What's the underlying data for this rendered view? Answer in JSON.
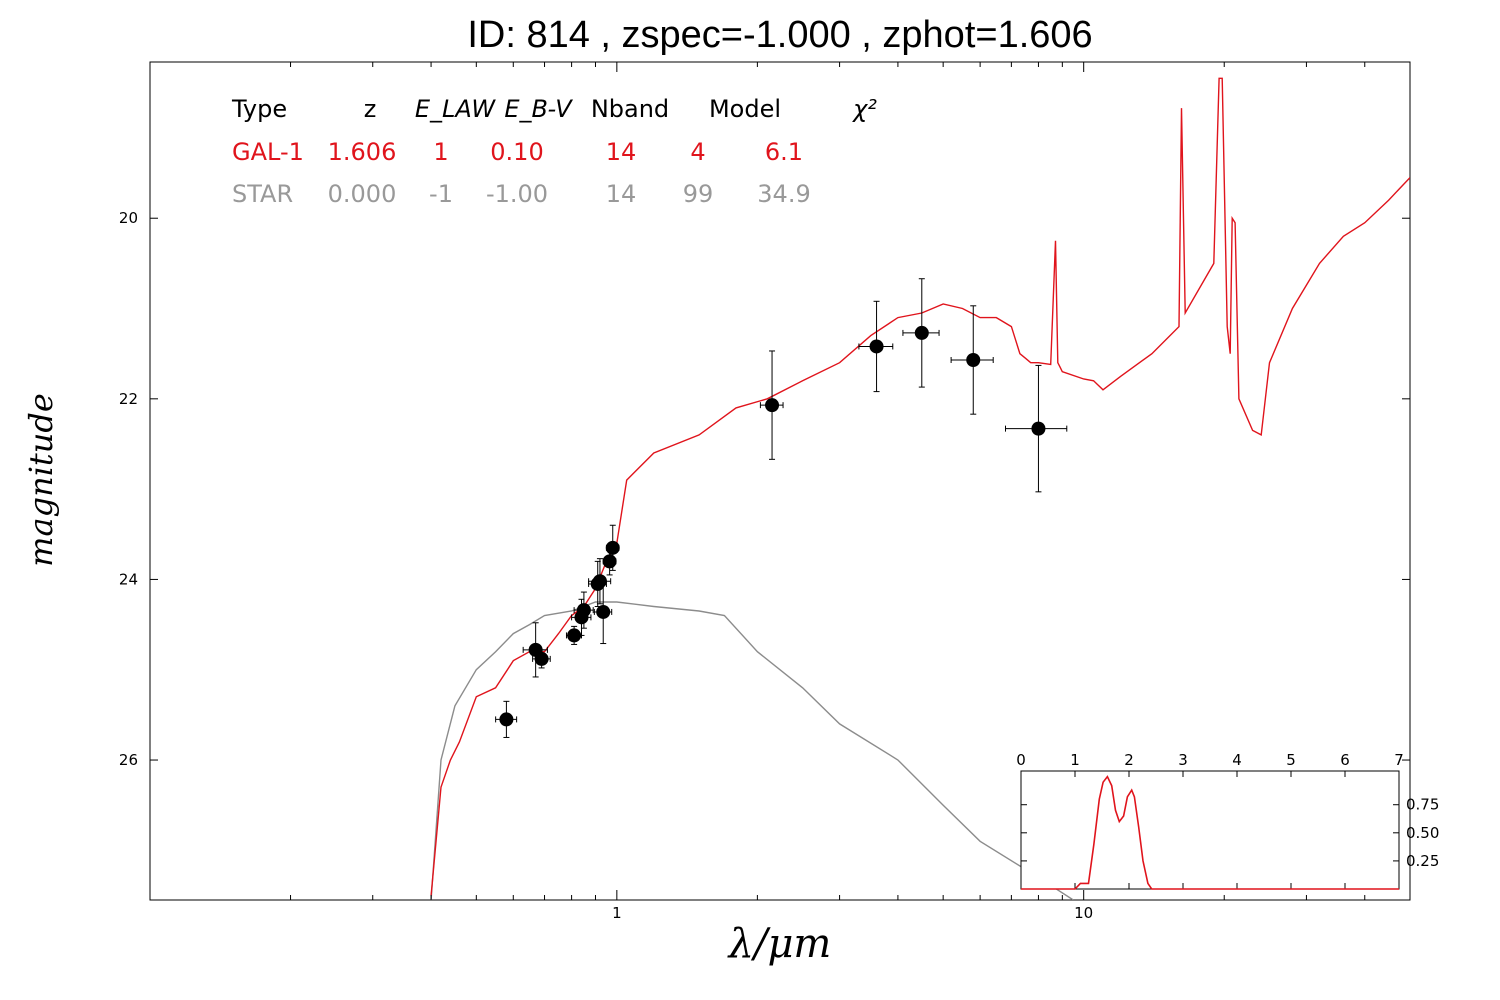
{
  "title": "ID:  814   , zspec=-1.000 , zphot=1.606",
  "colors": {
    "galaxy": "#e0141c",
    "star": "#8c8c8c",
    "points": "#000000"
  },
  "fit_table": {
    "headers": [
      "Type",
      "z",
      "E_LAW",
      "E_B-V",
      "Nband",
      "Model",
      "χ²"
    ],
    "rows": [
      {
        "name": "galaxy",
        "color": "#e0141c",
        "cells": [
          "GAL-1",
          "1.606",
          "1",
          "0.10",
          "14",
          "4",
          "6.1"
        ]
      },
      {
        "name": "star",
        "color": "#999999",
        "cells": [
          "STAR",
          "0.000",
          "-1",
          "-1.00",
          "14",
          "99",
          "34.9"
        ]
      }
    ]
  },
  "chart_data": [
    {
      "type": "line",
      "xlabel": "λ/μm",
      "ylabel": "magnitude",
      "x_scale": "log",
      "xlim": [
        0.1,
        50
      ],
      "ylim": [
        27.55,
        18.27
      ],
      "y_inverted": true,
      "x_ticks": [
        1,
        10
      ],
      "y_ticks": [
        20,
        22,
        24,
        26
      ],
      "series": [
        {
          "name": "GAL-1",
          "color": "#e0141c",
          "x": [
            0.4,
            0.42,
            0.44,
            0.46,
            0.5,
            0.55,
            0.6,
            0.65,
            0.7,
            0.75,
            0.8,
            0.85,
            0.9,
            0.95,
            1.0,
            1.05,
            1.2,
            1.5,
            1.8,
            2.1,
            2.5,
            3.0,
            3.5,
            4.0,
            4.5,
            5.0,
            5.5,
            6.0,
            6.5,
            7.0,
            7.3,
            7.5,
            7.7,
            8.0,
            8.5,
            8.7,
            8.8,
            8.9,
            9.0,
            10,
            10.5,
            11,
            12,
            14,
            16,
            16.2,
            16.5,
            19,
            19.5,
            19.8,
            20.3,
            20.6,
            20.8,
            21.1,
            21.5,
            23,
            24,
            25,
            28,
            32,
            36,
            40,
            45,
            50
          ],
          "y": [
            27.5,
            26.3,
            26.0,
            25.8,
            25.3,
            25.2,
            24.9,
            24.8,
            24.8,
            24.6,
            24.4,
            24.3,
            24.1,
            23.8,
            23.6,
            22.9,
            22.6,
            22.4,
            22.1,
            22.0,
            21.8,
            21.6,
            21.3,
            21.1,
            21.05,
            20.95,
            21.0,
            21.1,
            21.1,
            21.2,
            21.5,
            21.55,
            21.6,
            21.6,
            21.62,
            20.25,
            21.6,
            21.65,
            21.7,
            21.78,
            21.8,
            21.9,
            21.75,
            21.5,
            21.2,
            18.78,
            21.05,
            20.5,
            18.45,
            18.45,
            21.2,
            21.5,
            20.0,
            20.05,
            22.0,
            22.35,
            22.4,
            21.6,
            21.0,
            20.5,
            20.2,
            20.05,
            19.8,
            19.55
          ]
        },
        {
          "name": "STAR",
          "color": "#8c8c8c",
          "x": [
            0.4,
            0.42,
            0.45,
            0.5,
            0.55,
            0.6,
            0.65,
            0.7,
            0.8,
            0.9,
            1.0,
            1.2,
            1.5,
            1.7,
            2.0,
            2.5,
            3.0,
            4.0,
            5.0,
            6.0,
            8.0,
            9.5
          ],
          "y": [
            27.55,
            26.0,
            25.4,
            25.0,
            24.8,
            24.6,
            24.5,
            24.4,
            24.35,
            24.25,
            24.25,
            24.3,
            24.35,
            24.4,
            24.8,
            25.2,
            25.6,
            26.0,
            26.5,
            26.9,
            27.3,
            27.55
          ]
        }
      ],
      "points": [
        {
          "x": 0.58,
          "y": 25.55,
          "xerr": 0.03,
          "yerr": 0.2
        },
        {
          "x": 0.67,
          "y": 24.78,
          "xerr": 0.04,
          "yerr": 0.3
        },
        {
          "x": 0.69,
          "y": 24.88,
          "xerr": 0.03,
          "yerr": 0.1
        },
        {
          "x": 0.81,
          "y": 24.62,
          "xerr": 0.03,
          "yerr": 0.1
        },
        {
          "x": 0.84,
          "y": 24.42,
          "xerr": 0.04,
          "yerr": 0.2
        },
        {
          "x": 0.85,
          "y": 24.34,
          "xerr": 0.04,
          "yerr": 0.2
        },
        {
          "x": 0.91,
          "y": 24.05,
          "xerr": 0.04,
          "yerr": 0.25
        },
        {
          "x": 0.92,
          "y": 24.02,
          "xerr": 0.05,
          "yerr": 0.25
        },
        {
          "x": 0.935,
          "y": 24.36,
          "xerr": 0.04,
          "yerr": 0.35
        },
        {
          "x": 0.965,
          "y": 23.8,
          "xerr": 0.03,
          "yerr": 0.15
        },
        {
          "x": 0.98,
          "y": 23.65,
          "xerr": 0.03,
          "yerr": 0.25
        },
        {
          "x": 2.15,
          "y": 22.07,
          "xerr": 0.12,
          "yerr": 0.6
        },
        {
          "x": 3.6,
          "y": 21.42,
          "xerr": 0.3,
          "yerr": 0.5
        },
        {
          "x": 4.5,
          "y": 21.27,
          "xerr": 0.4,
          "yerr": 0.6
        },
        {
          "x": 5.8,
          "y": 21.57,
          "xerr": 0.6,
          "yerr": 0.6
        },
        {
          "x": 8.0,
          "y": 22.33,
          "xerr": 1.2,
          "yerr": 0.7
        }
      ]
    },
    {
      "type": "line",
      "name": "P(z) inset",
      "xlim": [
        0,
        7
      ],
      "ylim": [
        0,
        1.05
      ],
      "x_ticks": [
        0,
        1,
        2,
        3,
        4,
        5,
        6,
        7
      ],
      "y_ticks": [
        0.25,
        0.5,
        0.75
      ],
      "y_tick_labels": [
        "0.25",
        "0.50",
        "0.75"
      ],
      "series": [
        {
          "color": "#e0141c",
          "x": [
            0,
            1.0,
            1.1,
            1.25,
            1.35,
            1.45,
            1.52,
            1.6,
            1.68,
            1.75,
            1.82,
            1.9,
            1.97,
            2.05,
            2.1,
            2.18,
            2.26,
            2.35,
            2.42,
            2.5,
            7
          ],
          "y": [
            0,
            0,
            0.05,
            0.05,
            0.4,
            0.8,
            0.95,
            1.0,
            0.92,
            0.7,
            0.6,
            0.65,
            0.82,
            0.88,
            0.82,
            0.55,
            0.25,
            0.05,
            0,
            0,
            0
          ]
        }
      ]
    }
  ]
}
